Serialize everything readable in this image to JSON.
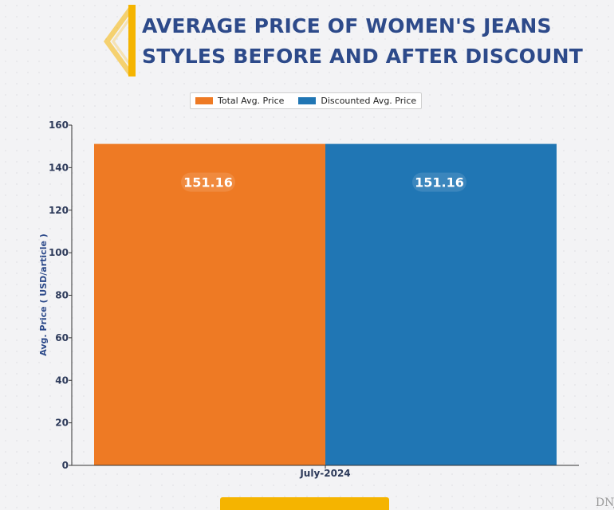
{
  "header": {
    "title": "AVERAGE PRICE OF WOMEN'S JEANS STYLES BEFORE AND AFTER DISCOUNT"
  },
  "colors": {
    "total": "#ee7a24",
    "discounted": "#2076b4",
    "title": "#2d4a8a",
    "accent": "#f5b400",
    "label_bg": "#f7a35c"
  },
  "watermark": "DNJ",
  "chart_data": {
    "type": "bar",
    "categories": [
      "July-2024"
    ],
    "series": [
      {
        "name": "Total Avg. Price",
        "values": [
          151.16
        ]
      },
      {
        "name": "Discounted Avg. Price",
        "values": [
          151.16
        ]
      }
    ],
    "data_labels": [
      "151.16",
      "151.16"
    ],
    "title": "AVERAGE PRICE OF WOMEN'S JEANS STYLES BEFORE AND AFTER DISCOUNT",
    "xlabel": "",
    "ylabel": "Avg. Price ( USD/article )",
    "ylim": [
      0,
      160
    ],
    "yticks": [
      0,
      20,
      40,
      60,
      80,
      100,
      120,
      140,
      160
    ],
    "grid": false,
    "legend": "top-center"
  }
}
